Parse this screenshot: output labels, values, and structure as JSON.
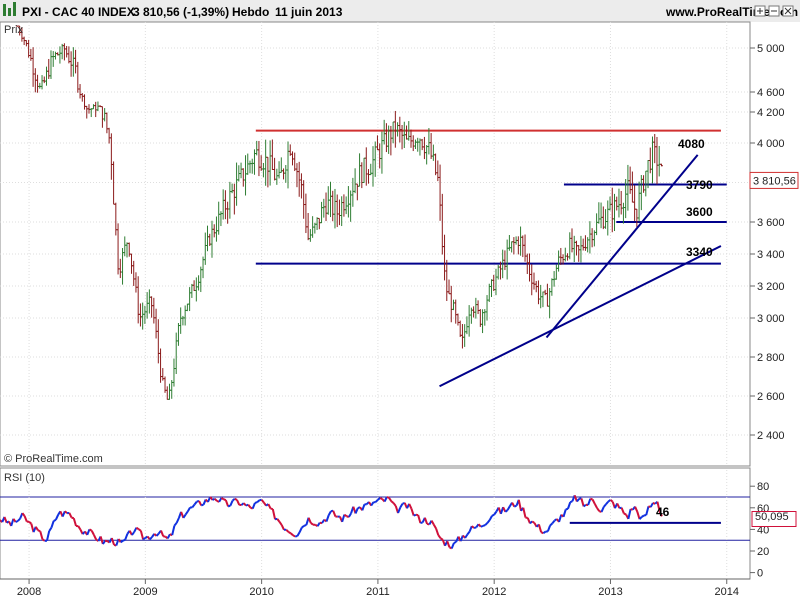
{
  "header": {
    "instrument": "PXI - CAC 40 INDEX",
    "quote": "3 810,56 (-1,39%)",
    "period": "Hebdo",
    "date": "11 juin 2013",
    "site": "www.ProRealTime.com"
  },
  "price_panel": {
    "label": "Prix",
    "credit": "© ProRealTime.com",
    "last_label": "3 810,56",
    "last_value": 3810.56,
    "level_labels": [
      "4080",
      "3790",
      "3600",
      "3340"
    ]
  },
  "rsi_panel": {
    "label": "RSI (10)",
    "last_label": "50,095",
    "last_value": 50.095,
    "level_label": "46"
  },
  "colors": {
    "accent_red": "#d03030",
    "line_blue": "#00008b",
    "bar_green": "#2e7d32",
    "bar_red": "#8b1a1a",
    "rsi_blue": "#1030e0",
    "rsi_red": "#d0103a"
  },
  "icons": [
    "chart-icon",
    "zoom-in-icon",
    "zoom-out-icon",
    "close-icon"
  ],
  "chart_data": [
    {
      "type": "ohlc",
      "x_ticks": [
        "2008",
        "2009",
        "2010",
        "2011",
        "2012",
        "2013",
        "2014"
      ],
      "y_ticks": [
        2400,
        2600,
        2800,
        3000,
        3200,
        3400,
        3600,
        3800,
        4000,
        4200,
        4600,
        5000
      ],
      "y_tick_labels": [
        "2 400",
        "2 600",
        "2 800",
        "3 000",
        "3 200",
        "3 400",
        "3 600",
        "",
        "4 000",
        "4 200",
        "4 600",
        "5 000"
      ],
      "ylim": [
        2250,
        5250
      ],
      "xlim": [
        2007.75,
        2014.2
      ],
      "anchors": [
        [
          2007.9,
          5500
        ],
        [
          2008.0,
          4950
        ],
        [
          2008.1,
          4600
        ],
        [
          2008.2,
          4900
        ],
        [
          2008.3,
          5000
        ],
        [
          2008.4,
          4800
        ],
        [
          2008.5,
          4250
        ],
        [
          2008.6,
          4300
        ],
        [
          2008.7,
          4000
        ],
        [
          2008.77,
          3300
        ],
        [
          2008.85,
          3500
        ],
        [
          2008.95,
          3000
        ],
        [
          2009.05,
          3100
        ],
        [
          2009.15,
          2650
        ],
        [
          2009.2,
          2560
        ],
        [
          2009.3,
          3000
        ],
        [
          2009.45,
          3250
        ],
        [
          2009.55,
          3500
        ],
        [
          2009.7,
          3700
        ],
        [
          2009.8,
          3800
        ],
        [
          2009.95,
          3950
        ],
        [
          2010.05,
          3900
        ],
        [
          2010.15,
          3800
        ],
        [
          2010.25,
          4000
        ],
        [
          2010.35,
          3750
        ],
        [
          2010.4,
          3500
        ],
        [
          2010.45,
          3550
        ],
        [
          2010.55,
          3700
        ],
        [
          2010.65,
          3650
        ],
        [
          2010.75,
          3750
        ],
        [
          2010.85,
          3850
        ],
        [
          2010.95,
          3900
        ],
        [
          2011.05,
          4000
        ],
        [
          2011.15,
          4100
        ],
        [
          2011.25,
          4000
        ],
        [
          2011.35,
          4050
        ],
        [
          2011.45,
          3950
        ],
        [
          2011.52,
          3800
        ],
        [
          2011.58,
          3200
        ],
        [
          2011.65,
          3050
        ],
        [
          2011.72,
          2850
        ],
        [
          2011.8,
          3100
        ],
        [
          2011.88,
          3000
        ],
        [
          2011.95,
          3150
        ],
        [
          2012.05,
          3300
        ],
        [
          2012.15,
          3450
        ],
        [
          2012.22,
          3500
        ],
        [
          2012.3,
          3300
        ],
        [
          2012.38,
          3150
        ],
        [
          2012.45,
          3100
        ],
        [
          2012.55,
          3350
        ],
        [
          2012.65,
          3450
        ],
        [
          2012.72,
          3400
        ],
        [
          2012.8,
          3500
        ],
        [
          2012.9,
          3600
        ],
        [
          2013.0,
          3650
        ],
        [
          2013.08,
          3700
        ],
        [
          2013.15,
          3760
        ],
        [
          2013.22,
          3650
        ],
        [
          2013.3,
          3850
        ],
        [
          2013.36,
          3950
        ],
        [
          2013.42,
          3900
        ],
        [
          2013.45,
          3810
        ]
      ],
      "levels": [
        {
          "label": "4080",
          "value": 4080,
          "x": [
            2009.95,
            2013.95
          ],
          "color": "#d03030"
        },
        {
          "label": "3790",
          "value": 3790,
          "x": [
            2012.6,
            2014.0
          ],
          "color": "#00008b"
        },
        {
          "label": "3600",
          "value": 3600,
          "x": [
            2013.05,
            2014.0
          ],
          "color": "#00008b"
        },
        {
          "label": "3340",
          "value": 3340,
          "x": [
            2009.95,
            2013.95
          ],
          "color": "#00008b"
        }
      ],
      "trendlines": [
        {
          "from": [
            2011.53,
            2650
          ],
          "to": [
            2013.95,
            3450
          ]
        },
        {
          "from": [
            2012.45,
            2900
          ],
          "to": [
            2013.75,
            3940
          ]
        }
      ]
    },
    {
      "type": "line",
      "name": "RSI (10)",
      "y_ticks": [
        0,
        20,
        40,
        60,
        80
      ],
      "ylim": [
        -5,
        95
      ],
      "bands": [
        30,
        70
      ],
      "anchors": [
        [
          2007.65,
          35
        ],
        [
          2007.75,
          50
        ],
        [
          2007.85,
          45
        ],
        [
          2007.95,
          52
        ],
        [
          2008.05,
          40
        ],
        [
          2008.15,
          30
        ],
        [
          2008.25,
          55
        ],
        [
          2008.35,
          55
        ],
        [
          2008.45,
          40
        ],
        [
          2008.55,
          35
        ],
        [
          2008.65,
          28
        ],
        [
          2008.72,
          30
        ],
        [
          2008.8,
          26
        ],
        [
          2008.9,
          40
        ],
        [
          2009.0,
          32
        ],
        [
          2009.1,
          38
        ],
        [
          2009.2,
          30
        ],
        [
          2009.3,
          52
        ],
        [
          2009.4,
          60
        ],
        [
          2009.5,
          66
        ],
        [
          2009.6,
          70
        ],
        [
          2009.7,
          63
        ],
        [
          2009.8,
          66
        ],
        [
          2009.9,
          60
        ],
        [
          2010.0,
          66
        ],
        [
          2010.1,
          55
        ],
        [
          2010.2,
          42
        ],
        [
          2010.3,
          36
        ],
        [
          2010.4,
          50
        ],
        [
          2010.5,
          46
        ],
        [
          2010.6,
          55
        ],
        [
          2010.7,
          50
        ],
        [
          2010.8,
          58
        ],
        [
          2010.9,
          62
        ],
        [
          2011.0,
          66
        ],
        [
          2011.1,
          68
        ],
        [
          2011.15,
          58
        ],
        [
          2011.25,
          62
        ],
        [
          2011.35,
          50
        ],
        [
          2011.45,
          48
        ],
        [
          2011.55,
          30
        ],
        [
          2011.65,
          25
        ],
        [
          2011.72,
          33
        ],
        [
          2011.8,
          40
        ],
        [
          2011.9,
          45
        ],
        [
          2012.0,
          56
        ],
        [
          2012.1,
          58
        ],
        [
          2012.2,
          66
        ],
        [
          2012.3,
          50
        ],
        [
          2012.38,
          42
        ],
        [
          2012.45,
          38
        ],
        [
          2012.55,
          50
        ],
        [
          2012.62,
          56
        ],
        [
          2012.7,
          70
        ],
        [
          2012.78,
          62
        ],
        [
          2012.85,
          68
        ],
        [
          2012.92,
          58
        ],
        [
          2013.0,
          66
        ],
        [
          2013.08,
          60
        ],
        [
          2013.15,
          52
        ],
        [
          2013.2,
          62
        ],
        [
          2013.28,
          48
        ],
        [
          2013.33,
          60
        ],
        [
          2013.4,
          68
        ],
        [
          2013.45,
          50
        ]
      ],
      "level": {
        "label": "46",
        "value": 46,
        "x": [
          2012.65,
          2013.95
        ]
      }
    }
  ]
}
